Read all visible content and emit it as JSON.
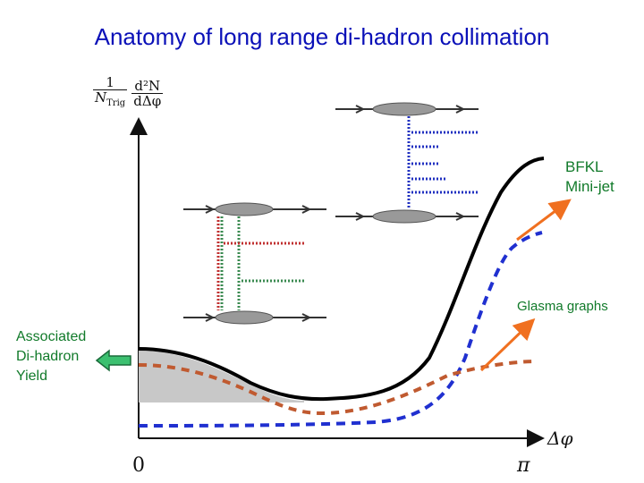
{
  "title": "Anatomy of long range di-hadron collimation",
  "labels": {
    "bfkl_line1": "BFKL",
    "bfkl_line2": "Mini-jet",
    "glasma": "Glasma graphs",
    "assoc_line1": "Associated",
    "assoc_line2": "Di-hadron",
    "assoc_line3": "Yield"
  },
  "axes": {
    "y_norm_num": "1",
    "y_norm_den": "N",
    "y_norm_den_sub": "Trig",
    "y_deriv_num": "d²N",
    "y_deriv_den": "dΔφ",
    "x_label": "Δφ",
    "x_tick_0": "0",
    "x_tick_pi": "π"
  },
  "colors": {
    "title": "#0a10b8",
    "labels": "#117a2a",
    "arrow": "#f07020",
    "total_curve": "#000000",
    "bfkl_curve": "#2030d0",
    "glasma_curve": "#c05a30",
    "shade": "#c8c8c8",
    "left_arrow_fill": "#3cc070",
    "gluon_green": "#3a8a50",
    "gluon_red": "#c03030",
    "gluon_blue": "#2030c0"
  },
  "icons": {
    "left_arrow": "left-arrow-icon",
    "feynman_left": "feynman-diagram-icon",
    "feynman_right": "feynman-diagram-icon"
  }
}
